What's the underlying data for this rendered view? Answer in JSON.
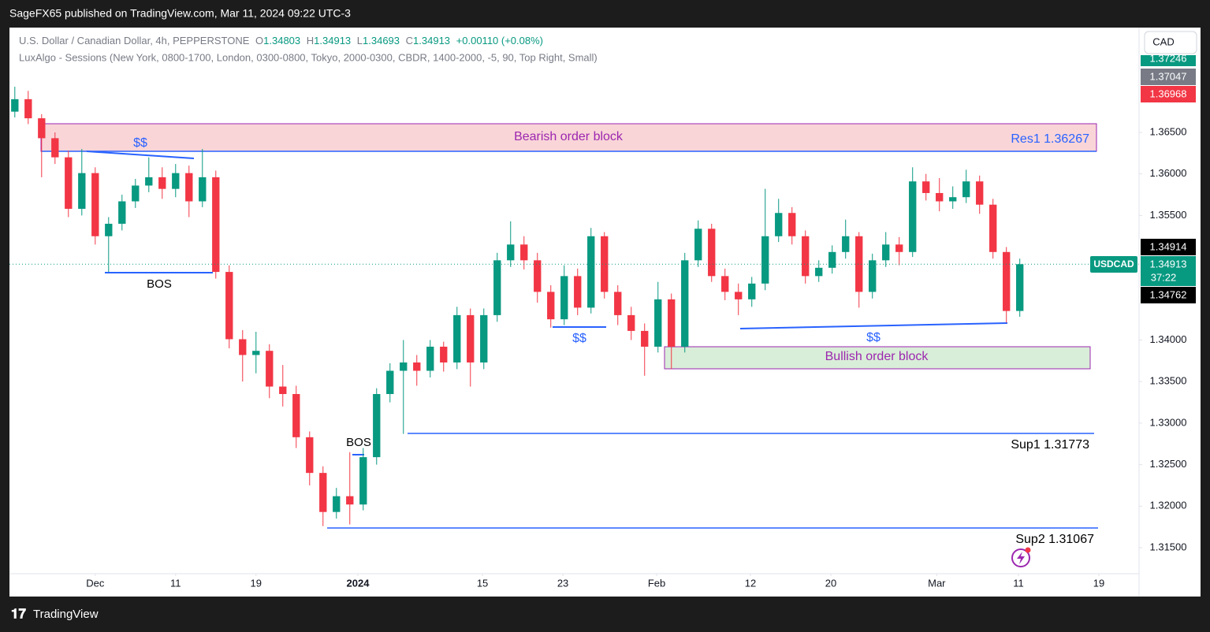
{
  "header": {
    "text": "SageFX65 published on TradingView.com, Mar 11, 2024 09:22 UTC-3"
  },
  "legend": {
    "symbol": "U.S. Dollar / Canadian Dollar, 4h, PEPPERSTONE",
    "o": "O",
    "open": "1.34803",
    "h": "H",
    "high": "1.34913",
    "l": "L",
    "low": "1.34693",
    "c": "C",
    "close": "1.34913",
    "change": "+0.00110 (+0.08%)"
  },
  "indicator": "LuxAlgo - Sessions (New York, 0800-1700, London, 0300-0800, Tokyo, 2000-0300, CBDR, 1400-2000, -5, 90, Top Right, Small)",
  "currency_button": "CAD",
  "price_badges": {
    "top": "1.37246",
    "gray": "1.37047",
    "red": "1.36968",
    "high": "1.34914",
    "symbol": "USDCAD",
    "last": "1.34913",
    "countdown": "37:22",
    "low": "1.34762"
  },
  "annotations": {
    "bearish_block": "Bearish order block",
    "res1": "Res1 1.36267",
    "liquidity_1": "$$",
    "bos_1": "BOS",
    "bos_2": "BOS",
    "liquidity_2": "$$",
    "liquidity_3": "$$",
    "bullish_block": "Bullish order block",
    "sup1": "Sup1 1.31773",
    "sup2": "Sup2 1.31067"
  },
  "footer": {
    "brand": "TradingView"
  },
  "chart_data": {
    "type": "candlestick",
    "up_color": "#089981",
    "down_color": "#f23645",
    "grid": false,
    "xlim": [
      -6.4,
      77.9
    ],
    "ylim": [
      1.31187,
      1.37762
    ],
    "xticks": [
      {
        "value": 0,
        "label": "Dec"
      },
      {
        "value": 6,
        "label": "11"
      },
      {
        "value": 12,
        "label": "19"
      },
      {
        "value": 19.6,
        "label": "2024"
      },
      {
        "value": 28.9,
        "label": "15"
      },
      {
        "value": 34.9,
        "label": "23"
      },
      {
        "value": 41.9,
        "label": "Feb"
      },
      {
        "value": 48.9,
        "label": "12"
      },
      {
        "value": 54.9,
        "label": "20"
      },
      {
        "value": 62.8,
        "label": "Mar"
      },
      {
        "value": 68.9,
        "label": "11"
      },
      {
        "value": 74.9,
        "label": "19"
      }
    ],
    "yticks": [
      {
        "value": 1.315,
        "label": "1.31500"
      },
      {
        "value": 1.32,
        "label": "1.32000"
      },
      {
        "value": 1.325,
        "label": "1.32500"
      },
      {
        "value": 1.33,
        "label": "1.33000"
      },
      {
        "value": 1.335,
        "label": "1.33500"
      },
      {
        "value": 1.34,
        "label": "1.34000"
      },
      {
        "value": 1.355,
        "label": "1.35500"
      },
      {
        "value": 1.36,
        "label": "1.36000"
      },
      {
        "value": 1.365,
        "label": "1.36500"
      }
    ],
    "x": [
      -6,
      -5,
      -4,
      -3,
      -2,
      -1,
      0,
      1,
      2,
      3,
      4,
      5,
      6,
      7,
      8,
      9,
      10,
      11,
      12,
      13,
      14,
      15,
      16,
      17,
      18,
      19,
      20,
      21,
      22,
      23,
      24,
      25,
      26,
      27,
      28,
      29,
      30,
      31,
      32,
      33,
      34,
      35,
      36,
      37,
      38,
      39,
      40,
      41,
      42,
      43,
      44,
      45,
      46,
      47,
      48,
      49,
      50,
      51,
      52,
      53,
      54,
      55,
      56,
      57,
      58,
      59,
      60,
      61,
      62,
      63,
      64,
      65,
      66,
      67,
      68,
      69
    ],
    "open": [
      1.3675,
      1.369,
      1.3667,
      1.3643,
      1.362,
      1.3558,
      1.3601,
      1.3525,
      1.354,
      1.3567,
      1.3586,
      1.3596,
      1.3582,
      1.3601,
      1.3567,
      1.3596,
      1.3482,
      1.3401,
      1.3382,
      1.3387,
      1.3344,
      1.3335,
      1.3283,
      1.324,
      1.3193,
      1.3212,
      1.3202,
      1.3259,
      1.3335,
      1.3363,
      1.3373,
      1.3363,
      1.3392,
      1.3373,
      1.343,
      1.3373,
      1.343,
      1.3496,
      1.3515,
      1.3496,
      1.3458,
      1.3425,
      1.3477,
      1.3439,
      1.3525,
      1.3458,
      1.343,
      1.3411,
      1.3392,
      1.3449,
      1.3392,
      1.3496,
      1.3534,
      1.3477,
      1.3458,
      1.3449,
      1.3468,
      1.3525,
      1.3553,
      1.3525,
      1.3477,
      1.3487,
      1.3506,
      1.3525,
      1.3458,
      1.3496,
      1.3515,
      1.3506,
      1.3591,
      1.3577,
      1.3567,
      1.3572,
      1.3591,
      1.3563,
      1.3506,
      1.3435
    ],
    "high": [
      1.3705,
      1.37,
      1.3672,
      1.365,
      1.3628,
      1.363,
      1.3608,
      1.3548,
      1.3575,
      1.3594,
      1.362,
      1.3608,
      1.3612,
      1.361,
      1.363,
      1.3604,
      1.349,
      1.3412,
      1.341,
      1.3395,
      1.337,
      1.3345,
      1.329,
      1.3248,
      1.3222,
      1.3265,
      1.327,
      1.3342,
      1.3372,
      1.34,
      1.3382,
      1.34,
      1.3398,
      1.344,
      1.3438,
      1.3438,
      1.3505,
      1.3543,
      1.3525,
      1.3505,
      1.3466,
      1.349,
      1.3486,
      1.3535,
      1.353,
      1.3466,
      1.344,
      1.342,
      1.347,
      1.3456,
      1.3505,
      1.3544,
      1.354,
      1.3486,
      1.3468,
      1.3476,
      1.3582,
      1.357,
      1.356,
      1.3532,
      1.3496,
      1.3514,
      1.3545,
      1.353,
      1.3504,
      1.353,
      1.3524,
      1.3608,
      1.36,
      1.3595,
      1.3585,
      1.3605,
      1.3598,
      1.357,
      1.3512,
      1.3498
    ],
    "low": [
      1.3668,
      1.366,
      1.3596,
      1.3612,
      1.3548,
      1.355,
      1.3515,
      1.3482,
      1.3532,
      1.3559,
      1.3578,
      1.357,
      1.3572,
      1.3548,
      1.356,
      1.3474,
      1.339,
      1.335,
      1.336,
      1.333,
      1.332,
      1.327,
      1.3225,
      1.3176,
      1.3185,
      1.3178,
      1.3195,
      1.325,
      1.3325,
      1.3287,
      1.3345,
      1.3355,
      1.3362,
      1.3365,
      1.3344,
      1.3365,
      1.3422,
      1.3488,
      1.3485,
      1.3445,
      1.3415,
      1.3418,
      1.343,
      1.3432,
      1.345,
      1.3418,
      1.34,
      1.3357,
      1.3385,
      1.3365,
      1.3385,
      1.3488,
      1.347,
      1.3448,
      1.343,
      1.344,
      1.346,
      1.3518,
      1.3515,
      1.3468,
      1.347,
      1.348,
      1.3498,
      1.3439,
      1.345,
      1.3488,
      1.349,
      1.35,
      1.3568,
      1.3555,
      1.3558,
      1.3565,
      1.3552,
      1.3498,
      1.3421,
      1.3428
    ],
    "close": [
      1.369,
      1.3667,
      1.3643,
      1.362,
      1.3558,
      1.3601,
      1.3525,
      1.354,
      1.3567,
      1.3586,
      1.3596,
      1.3582,
      1.3601,
      1.3567,
      1.3596,
      1.3482,
      1.3401,
      1.3382,
      1.3387,
      1.3344,
      1.3335,
      1.3283,
      1.324,
      1.3193,
      1.3212,
      1.3202,
      1.3259,
      1.3335,
      1.3363,
      1.3373,
      1.3363,
      1.3392,
      1.3373,
      1.343,
      1.3373,
      1.343,
      1.3496,
      1.3515,
      1.3496,
      1.3458,
      1.3425,
      1.3477,
      1.3439,
      1.3525,
      1.3458,
      1.343,
      1.3411,
      1.3392,
      1.3449,
      1.3392,
      1.3496,
      1.3534,
      1.3477,
      1.3458,
      1.3449,
      1.3468,
      1.3525,
      1.3553,
      1.3525,
      1.3477,
      1.3487,
      1.3506,
      1.3525,
      1.3458,
      1.3496,
      1.3515,
      1.3506,
      1.3591,
      1.3577,
      1.3567,
      1.3572,
      1.3591,
      1.3563,
      1.3506,
      1.3435,
      1.34913
    ]
  }
}
